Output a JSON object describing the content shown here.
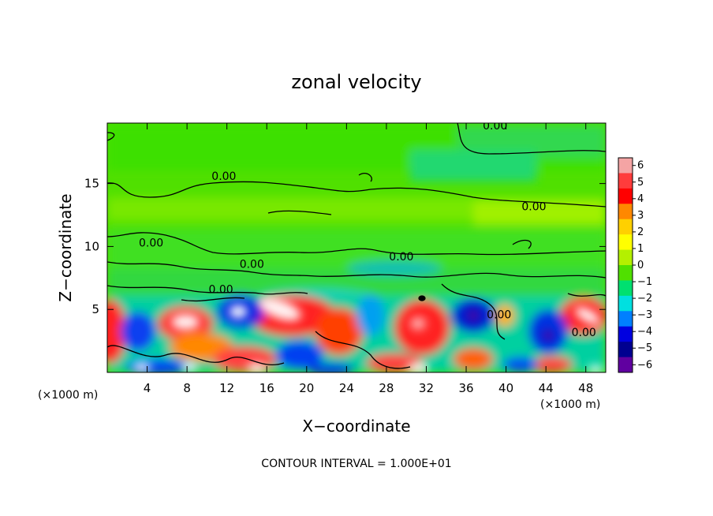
{
  "chart_data": {
    "type": "heatmap",
    "title": "zonal velocity",
    "xlabel": "X−coordinate",
    "ylabel": "Z−coordinate",
    "x_unit_label": "(×1000 m)",
    "x_ticks": [
      4,
      8,
      12,
      16,
      20,
      24,
      28,
      32,
      36,
      40,
      44,
      48
    ],
    "y_ticks": [
      5,
      10,
      15
    ],
    "xlim": [
      0,
      50
    ],
    "ylim": [
      0,
      19.8
    ],
    "footer": "CONTOUR INTERVAL = 1.000E+01",
    "colorbar": {
      "ticks": [
        "6",
        "5",
        "4",
        "3",
        "2",
        "1",
        "0",
        "−1",
        "−2",
        "−3",
        "−4",
        "−5",
        "−6"
      ],
      "range": [
        -6,
        6
      ],
      "colors": [
        "#f4a4a4",
        "#ff3c3c",
        "#ff0000",
        "#ff8800",
        "#ffd000",
        "#ffff00",
        "#b4f000",
        "#50e000",
        "#00e070",
        "#00e0e0",
        "#0080ff",
        "#0000e0",
        "#000090",
        "#6000a0"
      ]
    },
    "contour_labels": [
      {
        "text": "0.00",
        "x": 38.9,
        "z": 19.6
      },
      {
        "text": "0.00",
        "x": 11.7,
        "z": 15.6
      },
      {
        "text": "0.00",
        "x": 42.8,
        "z": 13.2
      },
      {
        "text": "0.00",
        "x": 4.4,
        "z": 10.3
      },
      {
        "text": "0.00",
        "x": 29.5,
        "z": 9.2
      },
      {
        "text": "0.00",
        "x": 14.5,
        "z": 8.6
      },
      {
        "text": "0.00",
        "x": 11.4,
        "z": 6.6
      },
      {
        "text": "0.00",
        "x": 39.3,
        "z": 4.6
      },
      {
        "text": "0.00",
        "x": 47.8,
        "z": 3.2
      }
    ]
  }
}
